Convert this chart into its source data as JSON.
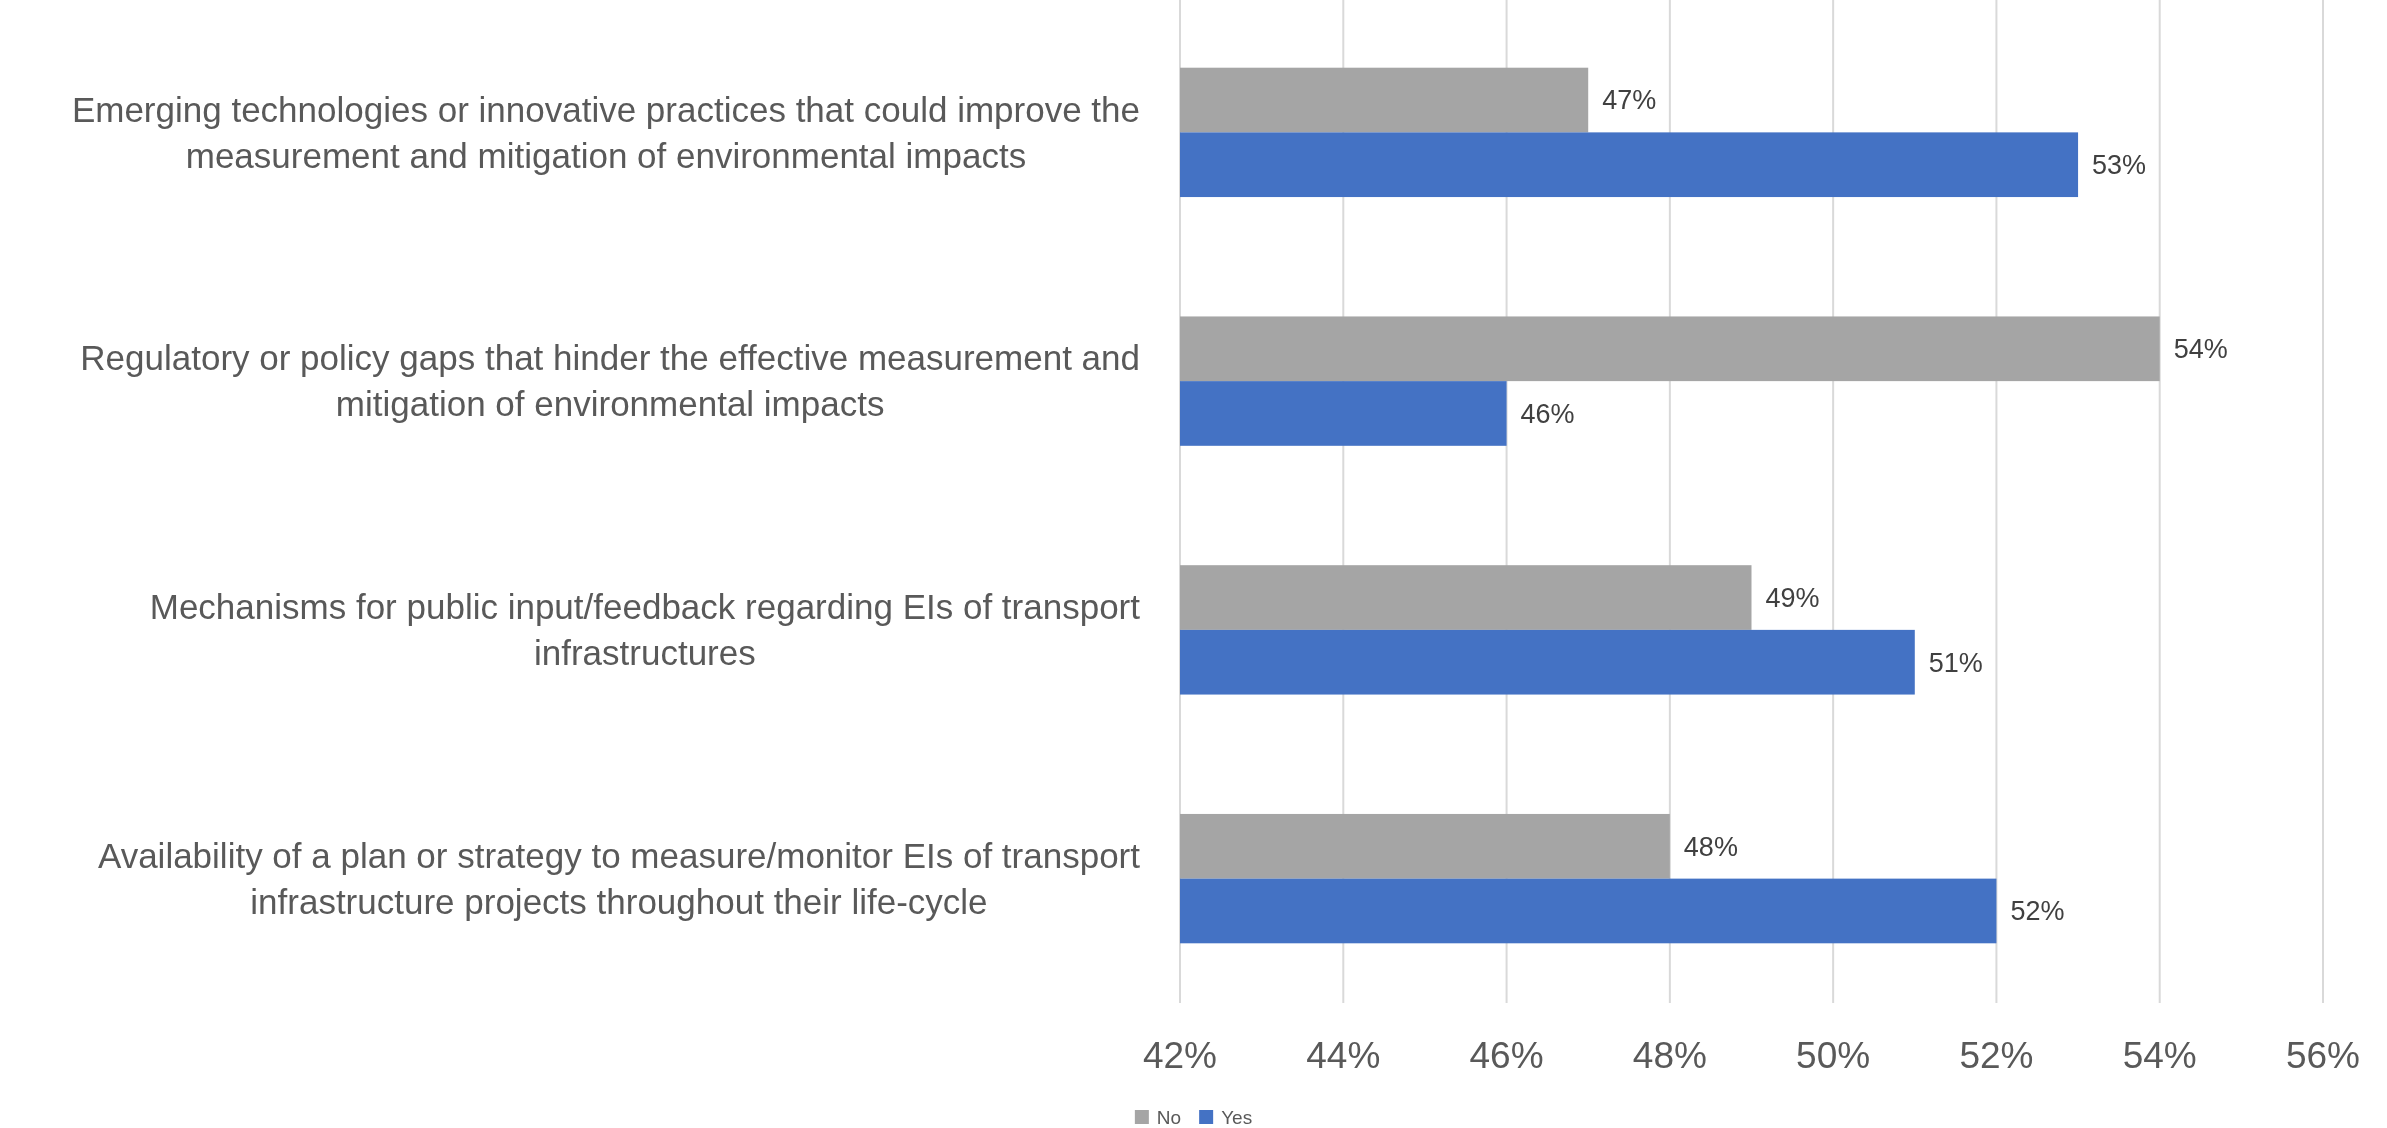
{
  "chart_data": {
    "type": "bar",
    "orientation": "horizontal",
    "categories": [
      "Emerging technologies or innovative practices that could improve the measurement and mitigation of environmental impacts",
      "Regulatory or policy gaps that hinder the effective measurement and mitigation of environmental impacts",
      "Mechanisms for public input/feedback regarding EIs of transport infrastructures",
      "Availability of a plan or strategy to measure/monitor EIs of transport infrastructure projects throughout their life-cycle"
    ],
    "series": [
      {
        "name": "No",
        "color": "#a5a5a5",
        "values": [
          47,
          54,
          49,
          48
        ],
        "value_labels": [
          "47%",
          "54%",
          "49%",
          "48%"
        ]
      },
      {
        "name": "Yes",
        "color": "#4472c4",
        "values": [
          53,
          46,
          51,
          52
        ],
        "value_labels": [
          "53%",
          "46%",
          "51%",
          "52%"
        ]
      }
    ],
    "xlim": [
      42,
      56
    ],
    "xticks": [
      {
        "value": 42,
        "label": "42%"
      },
      {
        "value": 44,
        "label": "44%"
      },
      {
        "value": 46,
        "label": "46%"
      },
      {
        "value": 48,
        "label": "48%"
      },
      {
        "value": 50,
        "label": "50%"
      },
      {
        "value": 52,
        "label": "52%"
      },
      {
        "value": 54,
        "label": "54%"
      },
      {
        "value": 56,
        "label": "56%"
      }
    ],
    "grid": "x",
    "legend": "bottom"
  }
}
